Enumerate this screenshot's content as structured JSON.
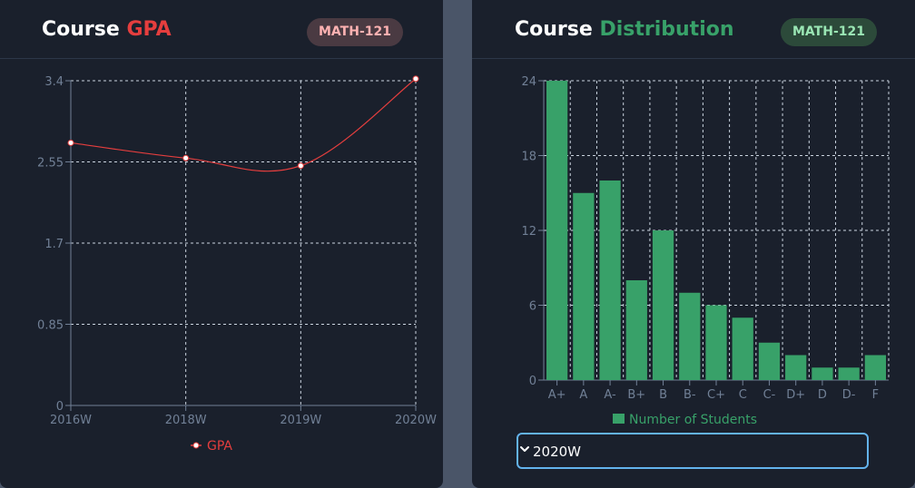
{
  "gpa_panel": {
    "title_prefix": "Course",
    "title_accent": "GPA",
    "badge": "MATH-121",
    "accent_color": "#e53e3e"
  },
  "dist_panel": {
    "title_prefix": "Course",
    "title_accent": "Distribution",
    "badge": "MATH-121",
    "accent_color": "#38a169",
    "select": {
      "value": "2020W",
      "icon": "chevron-down-icon"
    }
  },
  "chart_data": [
    {
      "type": "line",
      "x": [
        "2016W",
        "2018W",
        "2019W",
        "2020W"
      ],
      "series": [
        {
          "name": "GPA",
          "values": [
            2.75,
            2.59,
            2.51,
            3.42
          ],
          "color": "#e53e3e"
        }
      ],
      "yticks": [
        "0",
        "0.85",
        "1.7",
        "2.55",
        "3.4"
      ],
      "ytick_values": [
        0,
        0.85,
        1.7,
        2.55,
        3.4
      ],
      "ylim": [
        0,
        3.4
      ],
      "grid": true,
      "legend": "bottom"
    },
    {
      "type": "bar",
      "categories": [
        "A+",
        "A",
        "A-",
        "B+",
        "B",
        "B-",
        "C+",
        "C",
        "C-",
        "D+",
        "D",
        "D-",
        "F"
      ],
      "series": [
        {
          "name": "Number of Students",
          "values": [
            24,
            15,
            16,
            8,
            12,
            7,
            6,
            5,
            3,
            2,
            1,
            1,
            2
          ],
          "color": "#38a169"
        }
      ],
      "yticks": [
        "0",
        "6",
        "12",
        "18",
        "24"
      ],
      "ytick_values": [
        0,
        6,
        12,
        18,
        24
      ],
      "ylim": [
        0,
        24
      ],
      "grid": true,
      "legend": "bottom"
    }
  ]
}
